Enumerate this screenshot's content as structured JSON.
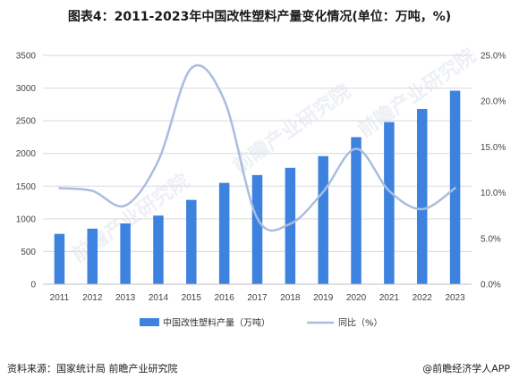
{
  "title": "图表4：2011-2023年中国改性塑料产量变化情况(单位：万吨，%)",
  "source": "资料来源：国家统计局 前瞻产业研究院",
  "brand": "@前瞻经济学人APP",
  "watermark": [
    "前瞻产业研究院",
    "前瞻产业研究院",
    "前瞻产业研究院"
  ],
  "colors": {
    "bar": "#3d82de",
    "line": "#a9bde0",
    "grid": "#d9d9d9"
  },
  "chart_data": {
    "type": "bar",
    "categories": [
      "2011",
      "2012",
      "2013",
      "2014",
      "2015",
      "2016",
      "2017",
      "2018",
      "2019",
      "2020",
      "2021",
      "2022",
      "2023"
    ],
    "series": [
      {
        "name": "中国改性塑料产量（万吨）",
        "type": "bar",
        "axis": "left",
        "values": [
          770,
          850,
          930,
          1050,
          1290,
          1550,
          1670,
          1780,
          1960,
          2250,
          2480,
          2680,
          2960
        ]
      },
      {
        "name": "同比（%）",
        "type": "line",
        "axis": "right",
        "values": [
          10.5,
          10.2,
          8.6,
          13.5,
          23.6,
          20.1,
          7.2,
          6.6,
          10.1,
          14.8,
          10.2,
          8.2,
          10.5
        ]
      }
    ],
    "y_left": {
      "range": [
        0,
        3500
      ],
      "ticks": [
        "0",
        "500",
        "1000",
        "1500",
        "2000",
        "2500",
        "3000",
        "3500"
      ]
    },
    "y_right": {
      "range": [
        0,
        25
      ],
      "ticks": [
        "0.0%",
        "5.0%",
        "10.0%",
        "15.0%",
        "20.0%",
        "25.0%"
      ]
    },
    "grid": "horizontal",
    "legend_position": "bottom"
  }
}
